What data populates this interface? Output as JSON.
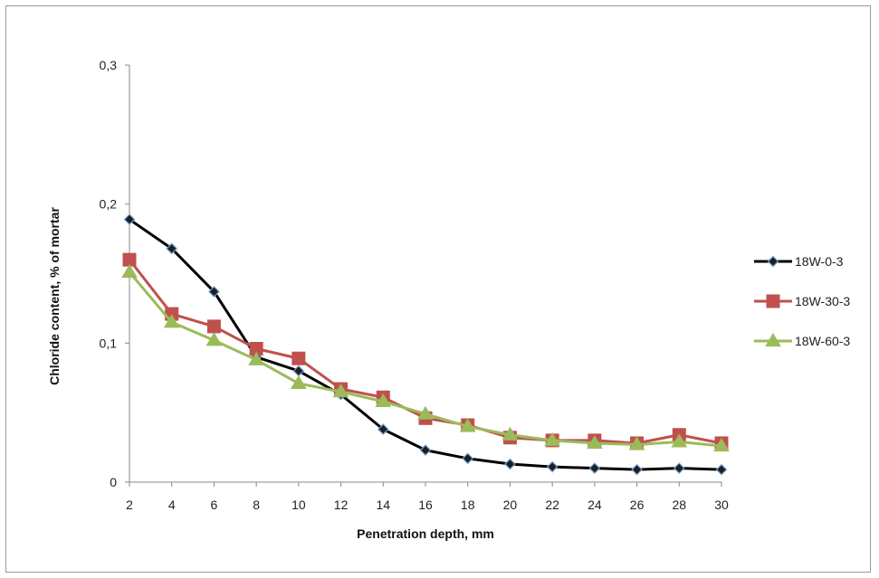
{
  "chart_data": {
    "type": "line",
    "xlabel": "Penetration depth, mm",
    "ylabel": "Chloride content, % of mortar",
    "categories": [
      "2",
      "4",
      "6",
      "8",
      "10",
      "12",
      "14",
      "16",
      "18",
      "20",
      "22",
      "24",
      "26",
      "28",
      "30"
    ],
    "ylim": [
      0,
      0.3
    ],
    "yticks": [
      0,
      0.1,
      0.2,
      0.3
    ],
    "ytick_labels": [
      "0",
      "0,1",
      "0,2",
      "0,3"
    ],
    "grid": false,
    "legend_position": "right",
    "series": [
      {
        "name": "18W-0-3",
        "color": "#000000",
        "marker": "diamond",
        "marker_fill": "#1f1f1f",
        "marker_stroke": "#6fa0d8",
        "values": [
          0.189,
          0.168,
          0.137,
          0.09,
          0.08,
          0.063,
          0.038,
          0.023,
          0.017,
          0.013,
          0.011,
          0.01,
          0.009,
          0.01,
          0.009
        ]
      },
      {
        "name": "18W-30-3",
        "color": "#c0504d",
        "marker": "square",
        "marker_fill": "#c0504d",
        "marker_stroke": "#c0504d",
        "values": [
          0.16,
          0.121,
          0.112,
          0.096,
          0.089,
          0.067,
          0.061,
          0.046,
          0.041,
          0.032,
          0.03,
          0.03,
          0.028,
          0.034,
          0.028
        ]
      },
      {
        "name": "18W-60-3",
        "color": "#9bbb59",
        "marker": "triangle",
        "marker_fill": "#9bbb59",
        "marker_stroke": "#9bbb59",
        "values": [
          0.151,
          0.115,
          0.102,
          0.088,
          0.071,
          0.065,
          0.058,
          0.049,
          0.04,
          0.034,
          0.03,
          0.028,
          0.027,
          0.029,
          0.026
        ]
      }
    ]
  }
}
